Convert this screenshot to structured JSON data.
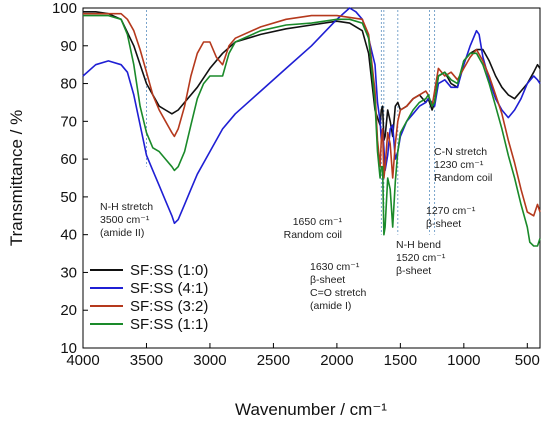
{
  "chart_data": {
    "type": "line",
    "xlabel": "Wavenumber / cm⁻¹",
    "ylabel": "Transmittance / %",
    "xlim": [
      4000,
      400
    ],
    "ylim": [
      10,
      100
    ],
    "x_reversed": true,
    "grid": false,
    "legend_position": "bottom-left",
    "xticks": [
      4000,
      3500,
      3000,
      2500,
      2000,
      1500,
      1000,
      500
    ],
    "yticks": [
      10,
      20,
      30,
      40,
      50,
      60,
      70,
      80,
      90,
      100
    ],
    "series": [
      {
        "name": "SF:SS (1:0)",
        "color": "#111111",
        "x": [
          4000,
          3900,
          3800,
          3700,
          3600,
          3500,
          3400,
          3350,
          3300,
          3250,
          3200,
          3100,
          3000,
          2900,
          2800,
          2600,
          2400,
          2200,
          2000,
          1900,
          1800,
          1750,
          1700,
          1680,
          1660,
          1650,
          1640,
          1630,
          1620,
          1600,
          1580,
          1560,
          1540,
          1520,
          1500,
          1450,
          1400,
          1350,
          1300,
          1280,
          1250,
          1240,
          1230,
          1200,
          1150,
          1100,
          1050,
          1000,
          950,
          900,
          850,
          800,
          750,
          700,
          650,
          600,
          550,
          500,
          450,
          420,
          400
        ],
        "y": [
          99,
          99,
          98.5,
          97,
          90,
          80,
          74,
          73,
          72,
          73,
          75,
          79,
          84,
          88,
          91,
          93,
          94.5,
          95.5,
          96.5,
          96,
          94,
          88,
          73,
          71,
          69,
          73,
          74,
          65,
          66,
          73,
          70,
          66,
          74,
          75,
          73,
          74,
          76,
          77,
          75,
          76,
          73,
          74,
          75,
          82,
          83,
          80,
          79,
          86,
          88,
          89,
          89,
          86,
          82,
          79,
          77,
          76,
          78,
          80,
          83,
          85,
          84
        ]
      },
      {
        "name": "SF:SS (4:1)",
        "color": "#1f1fd4",
        "x": [
          4000,
          3900,
          3800,
          3700,
          3650,
          3600,
          3500,
          3450,
          3400,
          3350,
          3300,
          3280,
          3250,
          3200,
          3150,
          3100,
          3000,
          2900,
          2800,
          2600,
          2400,
          2200,
          2000,
          1900,
          1850,
          1800,
          1750,
          1700,
          1680,
          1660,
          1650,
          1640,
          1630,
          1620,
          1600,
          1580,
          1560,
          1540,
          1520,
          1500,
          1450,
          1400,
          1350,
          1300,
          1280,
          1250,
          1230,
          1200,
          1150,
          1100,
          1050,
          1000,
          950,
          900,
          880,
          850,
          800,
          750,
          700,
          650,
          600,
          550,
          500,
          450,
          420,
          400
        ],
        "y": [
          82,
          85,
          86,
          85,
          83,
          77,
          61,
          57,
          53,
          49,
          45,
          43,
          44,
          48,
          52,
          56,
          62,
          68,
          72,
          78,
          84,
          90,
          97,
          100,
          99,
          97,
          92,
          85,
          75,
          70,
          65,
          68,
          63,
          57,
          61,
          68,
          69,
          60,
          62,
          66,
          70,
          72,
          74,
          75,
          76,
          75,
          74,
          80,
          81,
          79,
          79,
          85,
          90,
          94,
          93,
          87,
          81,
          76,
          73,
          71,
          73,
          76,
          80,
          82,
          81,
          80
        ]
      },
      {
        "name": "SF:SS (3:2)",
        "color": "#b5391d",
        "x": [
          4000,
          3900,
          3800,
          3700,
          3650,
          3600,
          3550,
          3500,
          3450,
          3400,
          3350,
          3300,
          3280,
          3250,
          3200,
          3150,
          3100,
          3050,
          3000,
          2950,
          2900,
          2850,
          2800,
          2600,
          2400,
          2200,
          2000,
          1900,
          1800,
          1750,
          1700,
          1680,
          1660,
          1650,
          1640,
          1630,
          1620,
          1600,
          1580,
          1560,
          1540,
          1520,
          1500,
          1450,
          1400,
          1350,
          1300,
          1280,
          1250,
          1230,
          1200,
          1150,
          1100,
          1050,
          1000,
          950,
          900,
          850,
          800,
          750,
          700,
          650,
          600,
          550,
          500,
          450,
          420,
          400
        ],
        "y": [
          98.5,
          98.5,
          98.5,
          98.5,
          97,
          94,
          89,
          83,
          77,
          73,
          70,
          67,
          66,
          68,
          74,
          82,
          88,
          91,
          91,
          87,
          85,
          90,
          92,
          95,
          97,
          98,
          98,
          97.5,
          97,
          93,
          78,
          65,
          58,
          65,
          68,
          55,
          58,
          67,
          64,
          55,
          64,
          70,
          73,
          74,
          76,
          77,
          78,
          77,
          74,
          78,
          84,
          82,
          83,
          81,
          84,
          87,
          89,
          86,
          82,
          77,
          72,
          65,
          59,
          52,
          46,
          45,
          48,
          46
        ]
      },
      {
        "name": "SF:SS (1:1)",
        "color": "#1a8a2a",
        "x": [
          4000,
          3900,
          3800,
          3700,
          3650,
          3600,
          3550,
          3500,
          3450,
          3400,
          3350,
          3300,
          3280,
          3250,
          3200,
          3150,
          3100,
          3050,
          3000,
          2950,
          2900,
          2850,
          2800,
          2600,
          2400,
          2200,
          2000,
          1900,
          1800,
          1750,
          1700,
          1680,
          1660,
          1650,
          1640,
          1630,
          1620,
          1600,
          1580,
          1560,
          1540,
          1520,
          1500,
          1450,
          1400,
          1350,
          1300,
          1280,
          1250,
          1230,
          1200,
          1150,
          1100,
          1050,
          1000,
          950,
          900,
          850,
          800,
          750,
          700,
          650,
          600,
          550,
          500,
          480,
          450,
          420,
          400
        ],
        "y": [
          98,
          98,
          98,
          97,
          93,
          85,
          74,
          67,
          63,
          62,
          60,
          58,
          57,
          58,
          62,
          69,
          76,
          80,
          82,
          82,
          82,
          88,
          91,
          94,
          95.5,
          96,
          97,
          97,
          96,
          92,
          75,
          62,
          55,
          58,
          58,
          40,
          42,
          55,
          52,
          42,
          54,
          62,
          67,
          70,
          73,
          75,
          76,
          77,
          74,
          75,
          82,
          83,
          81,
          80,
          86,
          88,
          88,
          85,
          80,
          74,
          68,
          61,
          55,
          48,
          42,
          38,
          37,
          37,
          39
        ]
      }
    ],
    "annotations": [
      {
        "x": 3500,
        "lines": [
          "N-H stretch",
          "3500 cm⁻¹",
          "(amide II)"
        ]
      },
      {
        "x": 1650,
        "lines": [
          "1650 cm⁻¹",
          "Random coil"
        ]
      },
      {
        "x": 1630,
        "lines": [
          "1630 cm⁻¹",
          "β-sheet",
          "C=O stretch",
          "(amide I)"
        ]
      },
      {
        "x": 1520,
        "lines": [
          "N-H bend",
          "1520 cm⁻¹",
          "β-sheet"
        ]
      },
      {
        "x": 1270,
        "lines": [
          "1270 cm⁻¹",
          "β-sheet"
        ]
      },
      {
        "x": 1230,
        "lines": [
          "C-N stretch",
          "1230 cm⁻¹",
          "Random coil"
        ]
      }
    ]
  }
}
